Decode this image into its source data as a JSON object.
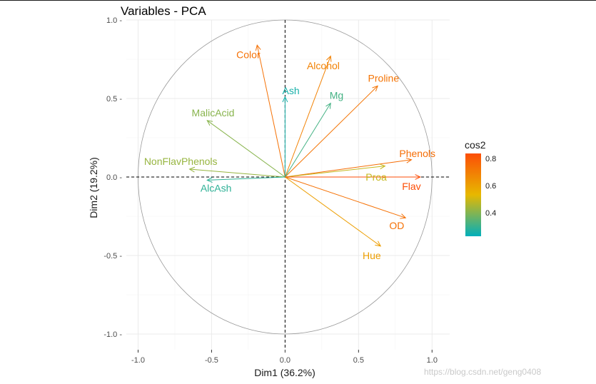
{
  "chart_data": {
    "type": "scatter",
    "subtype": "pca-variables-correlation-circle",
    "title": "Variables - PCA",
    "xlabel": "Dim1 (36.2%)",
    "ylabel": "Dim2 (19.2%)",
    "xlim": [
      -1.08,
      1.12
    ],
    "ylim": [
      -1.1,
      1.0
    ],
    "xticks": [
      -1.0,
      -0.5,
      0.0,
      0.5,
      1.0
    ],
    "xtick_labels": [
      "-1.0",
      "-0.5",
      "0.0",
      "0.5",
      "1.0"
    ],
    "yticks": [
      -1.0,
      -0.5,
      0.0,
      0.5,
      1.0
    ],
    "ytick_labels": [
      "-1.0 -",
      "-0.5 -",
      "0.0 -",
      "0.5 -",
      "1.0 -"
    ],
    "grid": true,
    "unit_circle": true,
    "color_by": "cos2",
    "legend": {
      "title": "cos2",
      "placement": "right",
      "range": [
        0.23,
        0.84
      ],
      "ticks": [
        0.4,
        0.6,
        0.8
      ],
      "tick_labels": [
        "0.4",
        "0.6",
        "0.8"
      ],
      "gradient": [
        "#00AFBB",
        "#E7B800",
        "#FC4E07"
      ]
    },
    "variables": [
      {
        "name": "Color",
        "x": -0.19,
        "y": 0.84,
        "cos2": 0.74,
        "label": {
          "x": -0.25,
          "y": 0.78
        }
      },
      {
        "name": "Alcohol",
        "x": 0.31,
        "y": 0.77,
        "cos2": 0.69,
        "label": {
          "x": 0.26,
          "y": 0.71
        }
      },
      {
        "name": "Proline",
        "x": 0.63,
        "y": 0.58,
        "cos2": 0.73,
        "label": {
          "x": 0.67,
          "y": 0.63
        }
      },
      {
        "name": "Ash",
        "x": 0.0,
        "y": 0.51,
        "cos2": 0.26,
        "label": {
          "x": 0.04,
          "y": 0.55
        }
      },
      {
        "name": "Mg",
        "x": 0.31,
        "y": 0.47,
        "cos2": 0.32,
        "label": {
          "x": 0.35,
          "y": 0.52
        }
      },
      {
        "name": "MalicAcid",
        "x": -0.53,
        "y": 0.36,
        "cos2": 0.41,
        "label": {
          "x": -0.49,
          "y": 0.41
        }
      },
      {
        "name": "NonFlavPhenols",
        "x": -0.65,
        "y": 0.05,
        "cos2": 0.43,
        "label": {
          "x": -0.71,
          "y": 0.1
        }
      },
      {
        "name": "AlcAsh",
        "x": -0.53,
        "y": -0.02,
        "cos2": 0.29,
        "label": {
          "x": -0.47,
          "y": -0.07
        }
      },
      {
        "name": "Phenols",
        "x": 0.86,
        "y": 0.11,
        "cos2": 0.75,
        "label": {
          "x": 0.9,
          "y": 0.15
        }
      },
      {
        "name": "Proa",
        "x": 0.68,
        "y": 0.07,
        "cos2": 0.49,
        "label": {
          "x": 0.62,
          "y": 0.0
        }
      },
      {
        "name": "Flav",
        "x": 0.92,
        "y": 0.0,
        "cos2": 0.84,
        "label": {
          "x": 0.86,
          "y": -0.06
        }
      },
      {
        "name": "OD",
        "x": 0.82,
        "y": -0.26,
        "cos2": 0.74,
        "label": {
          "x": 0.76,
          "y": -0.31
        }
      },
      {
        "name": "Hue",
        "x": 0.65,
        "y": -0.44,
        "cos2": 0.61,
        "label": {
          "x": 0.59,
          "y": -0.5
        }
      }
    ]
  },
  "watermark": "https://blog.csdn.net/geng0408"
}
